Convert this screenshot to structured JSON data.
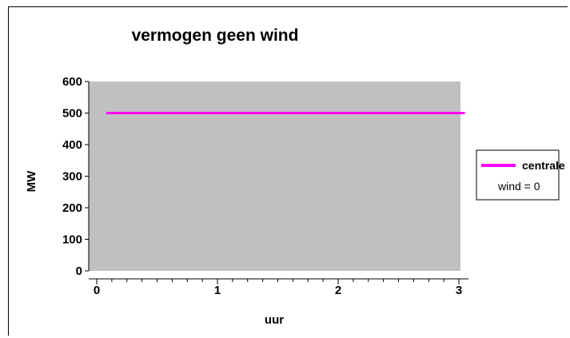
{
  "chart_data": {
    "type": "line",
    "title": "vermogen geen wind",
    "xlabel": "uur",
    "ylabel": "MW",
    "xlim": [
      0,
      3
    ],
    "ylim": [
      0,
      600
    ],
    "x_ticks": [
      "0",
      "1",
      "2",
      "3"
    ],
    "y_ticks": [
      "0",
      "100",
      "200",
      "300",
      "400",
      "500",
      "600"
    ],
    "series": [
      {
        "name": "centrale",
        "color": "#ff00ff",
        "x": [
          0.08,
          3.05
        ],
        "y": [
          500,
          500
        ]
      }
    ],
    "legend_position": "right",
    "legend_note": "wind = 0",
    "plot_background": "#c0c0c0",
    "grid": false
  }
}
